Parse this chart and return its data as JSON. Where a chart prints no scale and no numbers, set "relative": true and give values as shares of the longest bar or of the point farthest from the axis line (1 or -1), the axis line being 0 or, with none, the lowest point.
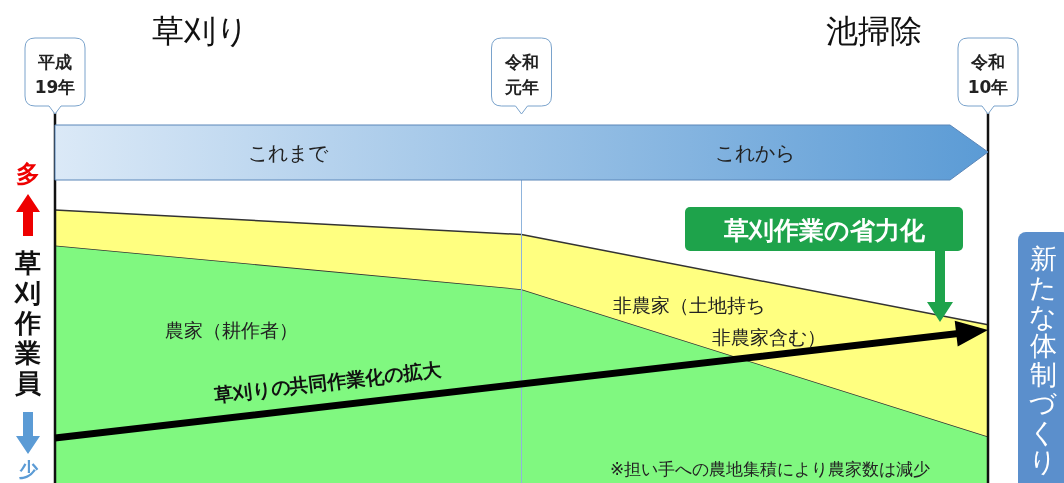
{
  "chart_data": {
    "type": "area",
    "stacked": true,
    "relative": true,
    "ylabel": "草刈作業員",
    "categories": [
      "平成19年",
      "令和元年",
      "令和10年"
    ],
    "series": [
      {
        "name": "農家（耕作者）",
        "color": "#80f880",
        "values": [
          0.87,
          0.71,
          0.17
        ]
      },
      {
        "name": "非農家（土地持ち非農家含む）",
        "color": "#ffff80",
        "values": [
          0.13,
          0.2,
          0.41
        ]
      }
    ],
    "ref_lines": [
      {
        "axis": "x",
        "value": "令和元年",
        "color": "#8fb4dc"
      }
    ],
    "annotations": [
      "草刈り",
      "池掃除",
      "これまで",
      "これから",
      "草刈作業の省力化",
      "草刈りの共同作業化の拡大",
      "新たな体制づくり",
      "※担い手への農地集積により農家数は減少",
      "多",
      "少"
    ]
  }
}
